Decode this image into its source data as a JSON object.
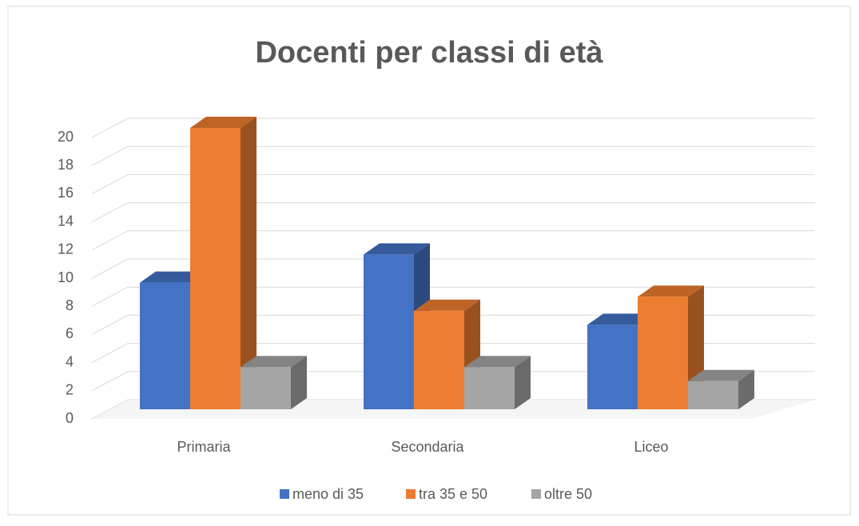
{
  "chart_data": {
    "type": "bar3d",
    "title": "Docenti per classi di età",
    "categories": [
      "Primaria",
      "Secondaria",
      "Liceo"
    ],
    "series": [
      {
        "name": "meno di 35",
        "color": "#4472c4",
        "values": [
          9,
          11,
          6
        ]
      },
      {
        "name": "tra 35 e 50",
        "color": "#ed7d31",
        "values": [
          20,
          7,
          8
        ]
      },
      {
        "name": "oltre 50",
        "color": "#a5a5a5",
        "values": [
          3,
          3,
          2
        ]
      }
    ],
    "ylim": [
      0,
      20
    ],
    "yticks": [
      0,
      2,
      4,
      6,
      8,
      10,
      12,
      14,
      16,
      18,
      20
    ],
    "grid": true,
    "legend": "bottom"
  }
}
